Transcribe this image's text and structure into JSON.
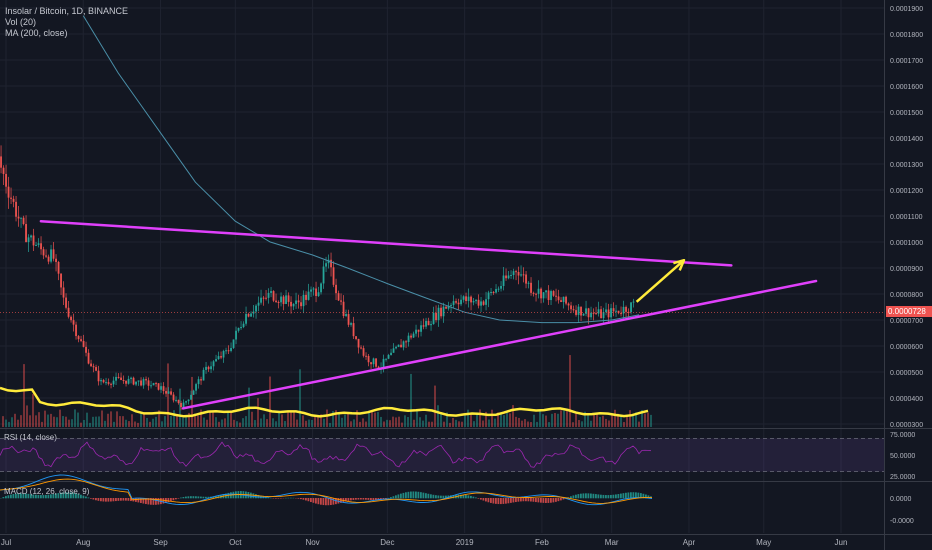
{
  "header": {
    "title": "Insolar / Bitcoin, 1D, BINANCE",
    "indicators": [
      "Vol (20)",
      "MA (200, close)"
    ]
  },
  "panes": {
    "rsi_label": "RSI (14, close)",
    "macd_label": "MACD (12, 26, close, 9)"
  },
  "colors": {
    "background": "#131722",
    "grid": "#1f2330",
    "up": "#26a69a",
    "down": "#ef5350",
    "trendline": "#e040fb",
    "arrow": "#ffeb3b",
    "volume_ma": "#ffeb3b",
    "ma200": "#4a8fa8",
    "rsi": "#9c27b0",
    "macd": "#2196f3",
    "signal": "#ff9800"
  },
  "chart_data": [
    {
      "type": "line",
      "title": "Insolar / Bitcoin, 1D, BINANCE",
      "x_axis_labels": [
        "Jul",
        "Aug",
        "Sep",
        "Oct",
        "Nov",
        "Dec",
        "2019",
        "Feb",
        "Mar",
        "Apr",
        "May",
        "Jun"
      ],
      "y_ticks": [
        "0.0001900",
        "0.0001800",
        "0.0001700",
        "0.0001600",
        "0.0001500",
        "0.0001400",
        "0.0001300",
        "0.0001200",
        "0.0001100",
        "0.0001000",
        "0.0000900",
        "0.0000800",
        "0.0000700",
        "0.0000600",
        "0.0000500",
        "0.0000400",
        "0.0000300"
      ],
      "ylim": [
        2.8e-05,
        0.000196
      ],
      "last_price_label": "0.0000728",
      "close_series": [
        {
          "date": "2018-06-25",
          "value": 0.00014
        },
        {
          "date": "2018-07-02",
          "value": 0.00012
        },
        {
          "date": "2018-07-08",
          "value": 0.000104
        },
        {
          "date": "2018-07-15",
          "value": 9.7e-05
        },
        {
          "date": "2018-07-20",
          "value": 9.4e-05
        },
        {
          "date": "2018-07-24",
          "value": 7.8e-05
        },
        {
          "date": "2018-07-29",
          "value": 6.6e-05
        },
        {
          "date": "2018-08-03",
          "value": 5.5e-05
        },
        {
          "date": "2018-08-08",
          "value": 4.6e-05
        },
        {
          "date": "2018-08-15",
          "value": 4.7e-05
        },
        {
          "date": "2018-08-25",
          "value": 4.6e-05
        },
        {
          "date": "2018-09-01",
          "value": 4.4e-05
        },
        {
          "date": "2018-09-10",
          "value": 3.7e-05
        },
        {
          "date": "2018-09-20",
          "value": 5.2e-05
        },
        {
          "date": "2018-09-28",
          "value": 5.8e-05
        },
        {
          "date": "2018-10-05",
          "value": 7.2e-05
        },
        {
          "date": "2018-10-15",
          "value": 8e-05
        },
        {
          "date": "2018-10-25",
          "value": 7.6e-05
        },
        {
          "date": "2018-11-03",
          "value": 8.2e-05
        },
        {
          "date": "2018-11-07",
          "value": 9.2e-05
        },
        {
          "date": "2018-11-14",
          "value": 7.2e-05
        },
        {
          "date": "2018-11-22",
          "value": 5.6e-05
        },
        {
          "date": "2018-11-28",
          "value": 5.2e-05
        },
        {
          "date": "2018-12-08",
          "value": 6.2e-05
        },
        {
          "date": "2018-12-18",
          "value": 7e-05
        },
        {
          "date": "2018-12-28",
          "value": 7.8e-05
        },
        {
          "date": "2019-01-08",
          "value": 7.7e-05
        },
        {
          "date": "2019-01-15",
          "value": 8.3e-05
        },
        {
          "date": "2019-01-22",
          "value": 9e-05
        },
        {
          "date": "2019-01-28",
          "value": 8.2e-05
        },
        {
          "date": "2019-02-05",
          "value": 7.9e-05
        },
        {
          "date": "2019-02-15",
          "value": 7.4e-05
        },
        {
          "date": "2019-02-25",
          "value": 7.2e-05
        },
        {
          "date": "2019-03-05",
          "value": 7.4e-05
        },
        {
          "date": "2019-03-10",
          "value": 7.6e-05
        }
      ],
      "ma200_series": [
        {
          "date": "2018-08-01",
          "value": 0.000187
        },
        {
          "date": "2018-08-15",
          "value": 0.000165
        },
        {
          "date": "2018-09-01",
          "value": 0.000142
        },
        {
          "date": "2018-09-15",
          "value": 0.000123
        },
        {
          "date": "2018-10-01",
          "value": 0.000108
        },
        {
          "date": "2018-10-15",
          "value": 0.0001
        },
        {
          "date": "2018-11-01",
          "value": 9.5e-05
        },
        {
          "date": "2018-11-15",
          "value": 9e-05
        },
        {
          "date": "2018-12-01",
          "value": 8.4e-05
        },
        {
          "date": "2018-12-15",
          "value": 7.9e-05
        },
        {
          "date": "2019-01-01",
          "value": 7.3e-05
        },
        {
          "date": "2019-01-15",
          "value": 7e-05
        },
        {
          "date": "2019-02-01",
          "value": 6.9e-05
        },
        {
          "date": "2019-02-15",
          "value": 6.9e-05
        },
        {
          "date": "2019-03-01",
          "value": 7e-05
        },
        {
          "date": "2019-03-12",
          "value": 7.2e-05
        }
      ],
      "trendlines": [
        {
          "kind": "resistance",
          "from": {
            "date": "2018-07-15",
            "value": 0.000108
          },
          "to": {
            "date": "2019-04-18",
            "value": 9.1e-05
          }
        },
        {
          "kind": "support",
          "from": {
            "date": "2018-09-10",
            "value": 3.6e-05
          },
          "to": {
            "date": "2019-05-22",
            "value": 8.5e-05
          }
        }
      ],
      "arrow": {
        "from": {
          "date": "2019-03-11",
          "value": 7.7e-05
        },
        "to": {
          "date": "2019-03-30",
          "value": 9.3e-05
        }
      }
    },
    {
      "type": "line",
      "title": "RSI (14, close)",
      "y_ticks": [
        "75.0000",
        "50.0000",
        "25.0000"
      ],
      "ylim": [
        20,
        80
      ]
    },
    {
      "type": "line",
      "title": "MACD (12, 26, close, 9)",
      "y_ticks": [
        "0.0000",
        "-0.0000"
      ]
    }
  ]
}
